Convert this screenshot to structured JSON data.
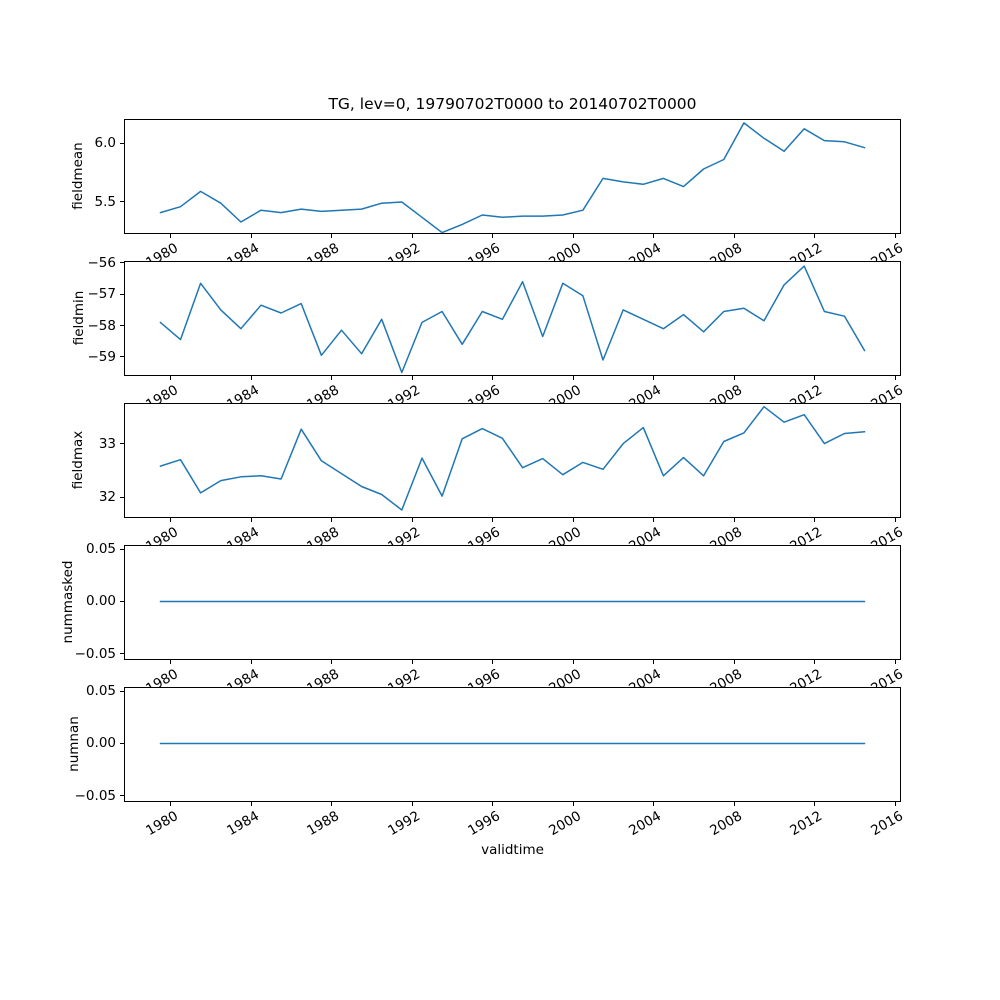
{
  "title": "TG, lev=0, 19790702T0000 to 20140702T0000",
  "colors": {
    "line": "#1f77b4",
    "spine": "#000000",
    "background": "#ffffff"
  },
  "x_axis": {
    "label": "validtime",
    "xlim": [
      1977.74,
      2016.26
    ],
    "tick_years": [
      1980,
      1984,
      1988,
      1992,
      1996,
      2000,
      2004,
      2008,
      2012,
      2016
    ],
    "tick_labels": [
      "1980",
      "1984",
      "1988",
      "1992",
      "1996",
      "2000",
      "2004",
      "2008",
      "2012",
      "2016"
    ],
    "tick_rotation_deg": 30,
    "data_years": [
      1979,
      1980,
      1981,
      1982,
      1983,
      1984,
      1985,
      1986,
      1987,
      1988,
      1989,
      1990,
      1991,
      1992,
      1993,
      1994,
      1995,
      1996,
      1997,
      1998,
      1999,
      2000,
      2001,
      2002,
      2003,
      2004,
      2005,
      2006,
      2007,
      2008,
      2009,
      2010,
      2011,
      2012,
      2013,
      2014
    ]
  },
  "chart_data": [
    {
      "type": "line",
      "ylabel": "fieldmean",
      "ylim": [
        5.237,
        6.195
      ],
      "yticks": [
        {
          "v": 6.0,
          "label": "6.0"
        },
        {
          "v": 5.5,
          "label": "5.5"
        }
      ],
      "values": [
        5.41,
        5.46,
        5.59,
        5.49,
        5.33,
        5.43,
        5.41,
        5.44,
        5.42,
        5.43,
        5.44,
        5.49,
        5.5,
        5.37,
        5.24,
        5.31,
        5.39,
        5.37,
        5.38,
        5.38,
        5.39,
        5.43,
        5.7,
        5.67,
        5.65,
        5.7,
        5.63,
        5.78,
        5.86,
        6.17,
        6.04,
        5.93,
        6.12,
        6.02,
        6.01,
        5.96
      ]
    },
    {
      "type": "line",
      "ylabel": "fieldmin",
      "ylim": [
        -59.58,
        -55.97
      ],
      "yticks": [
        {
          "v": -56,
          "label": "−56"
        },
        {
          "v": -57,
          "label": "−57"
        },
        {
          "v": -58,
          "label": "−58"
        },
        {
          "v": -59,
          "label": "−59"
        }
      ],
      "values": [
        -57.9,
        -58.45,
        -56.65,
        -57.5,
        -58.1,
        -57.35,
        -57.6,
        -57.3,
        -58.95,
        -58.15,
        -58.9,
        -57.8,
        -59.5,
        -57.9,
        -57.55,
        -58.6,
        -57.55,
        -57.8,
        -56.6,
        -58.35,
        -56.65,
        -57.05,
        -59.1,
        -57.5,
        -57.8,
        -58.1,
        -57.65,
        -58.2,
        -57.55,
        -57.45,
        -57.85,
        -56.7,
        -56.1,
        -57.55,
        -57.7,
        -58.8
      ]
    },
    {
      "type": "line",
      "ylabel": "fieldmax",
      "ylim": [
        31.63,
        33.74
      ],
      "yticks": [
        {
          "v": 33,
          "label": "33"
        },
        {
          "v": 32,
          "label": "32"
        }
      ],
      "values": [
        32.58,
        32.7,
        32.08,
        32.31,
        32.38,
        32.4,
        32.34,
        33.27,
        32.68,
        32.44,
        32.2,
        32.05,
        31.76,
        32.73,
        32.02,
        33.09,
        33.28,
        33.1,
        32.55,
        32.72,
        32.42,
        32.65,
        32.52,
        33.0,
        33.3,
        32.4,
        32.74,
        32.4,
        33.04,
        33.2,
        33.69,
        33.4,
        33.54,
        33.0,
        33.19,
        33.22
      ]
    },
    {
      "type": "line",
      "ylabel": "nummasked",
      "ylim": [
        -0.055,
        0.053
      ],
      "yticks": [
        {
          "v": 0.05,
          "label": "0.05"
        },
        {
          "v": 0.0,
          "label": "0.00"
        },
        {
          "v": -0.05,
          "label": "−0.05"
        }
      ],
      "values": [
        0,
        0,
        0,
        0,
        0,
        0,
        0,
        0,
        0,
        0,
        0,
        0,
        0,
        0,
        0,
        0,
        0,
        0,
        0,
        0,
        0,
        0,
        0,
        0,
        0,
        0,
        0,
        0,
        0,
        0,
        0,
        0,
        0,
        0,
        0,
        0
      ]
    },
    {
      "type": "line",
      "ylabel": "numnan",
      "ylim": [
        -0.055,
        0.053
      ],
      "yticks": [
        {
          "v": 0.05,
          "label": "0.05"
        },
        {
          "v": 0.0,
          "label": "0.00"
        },
        {
          "v": -0.05,
          "label": "−0.05"
        }
      ],
      "values": [
        0,
        0,
        0,
        0,
        0,
        0,
        0,
        0,
        0,
        0,
        0,
        0,
        0,
        0,
        0,
        0,
        0,
        0,
        0,
        0,
        0,
        0,
        0,
        0,
        0,
        0,
        0,
        0,
        0,
        0,
        0,
        0,
        0,
        0,
        0,
        0
      ]
    }
  ]
}
